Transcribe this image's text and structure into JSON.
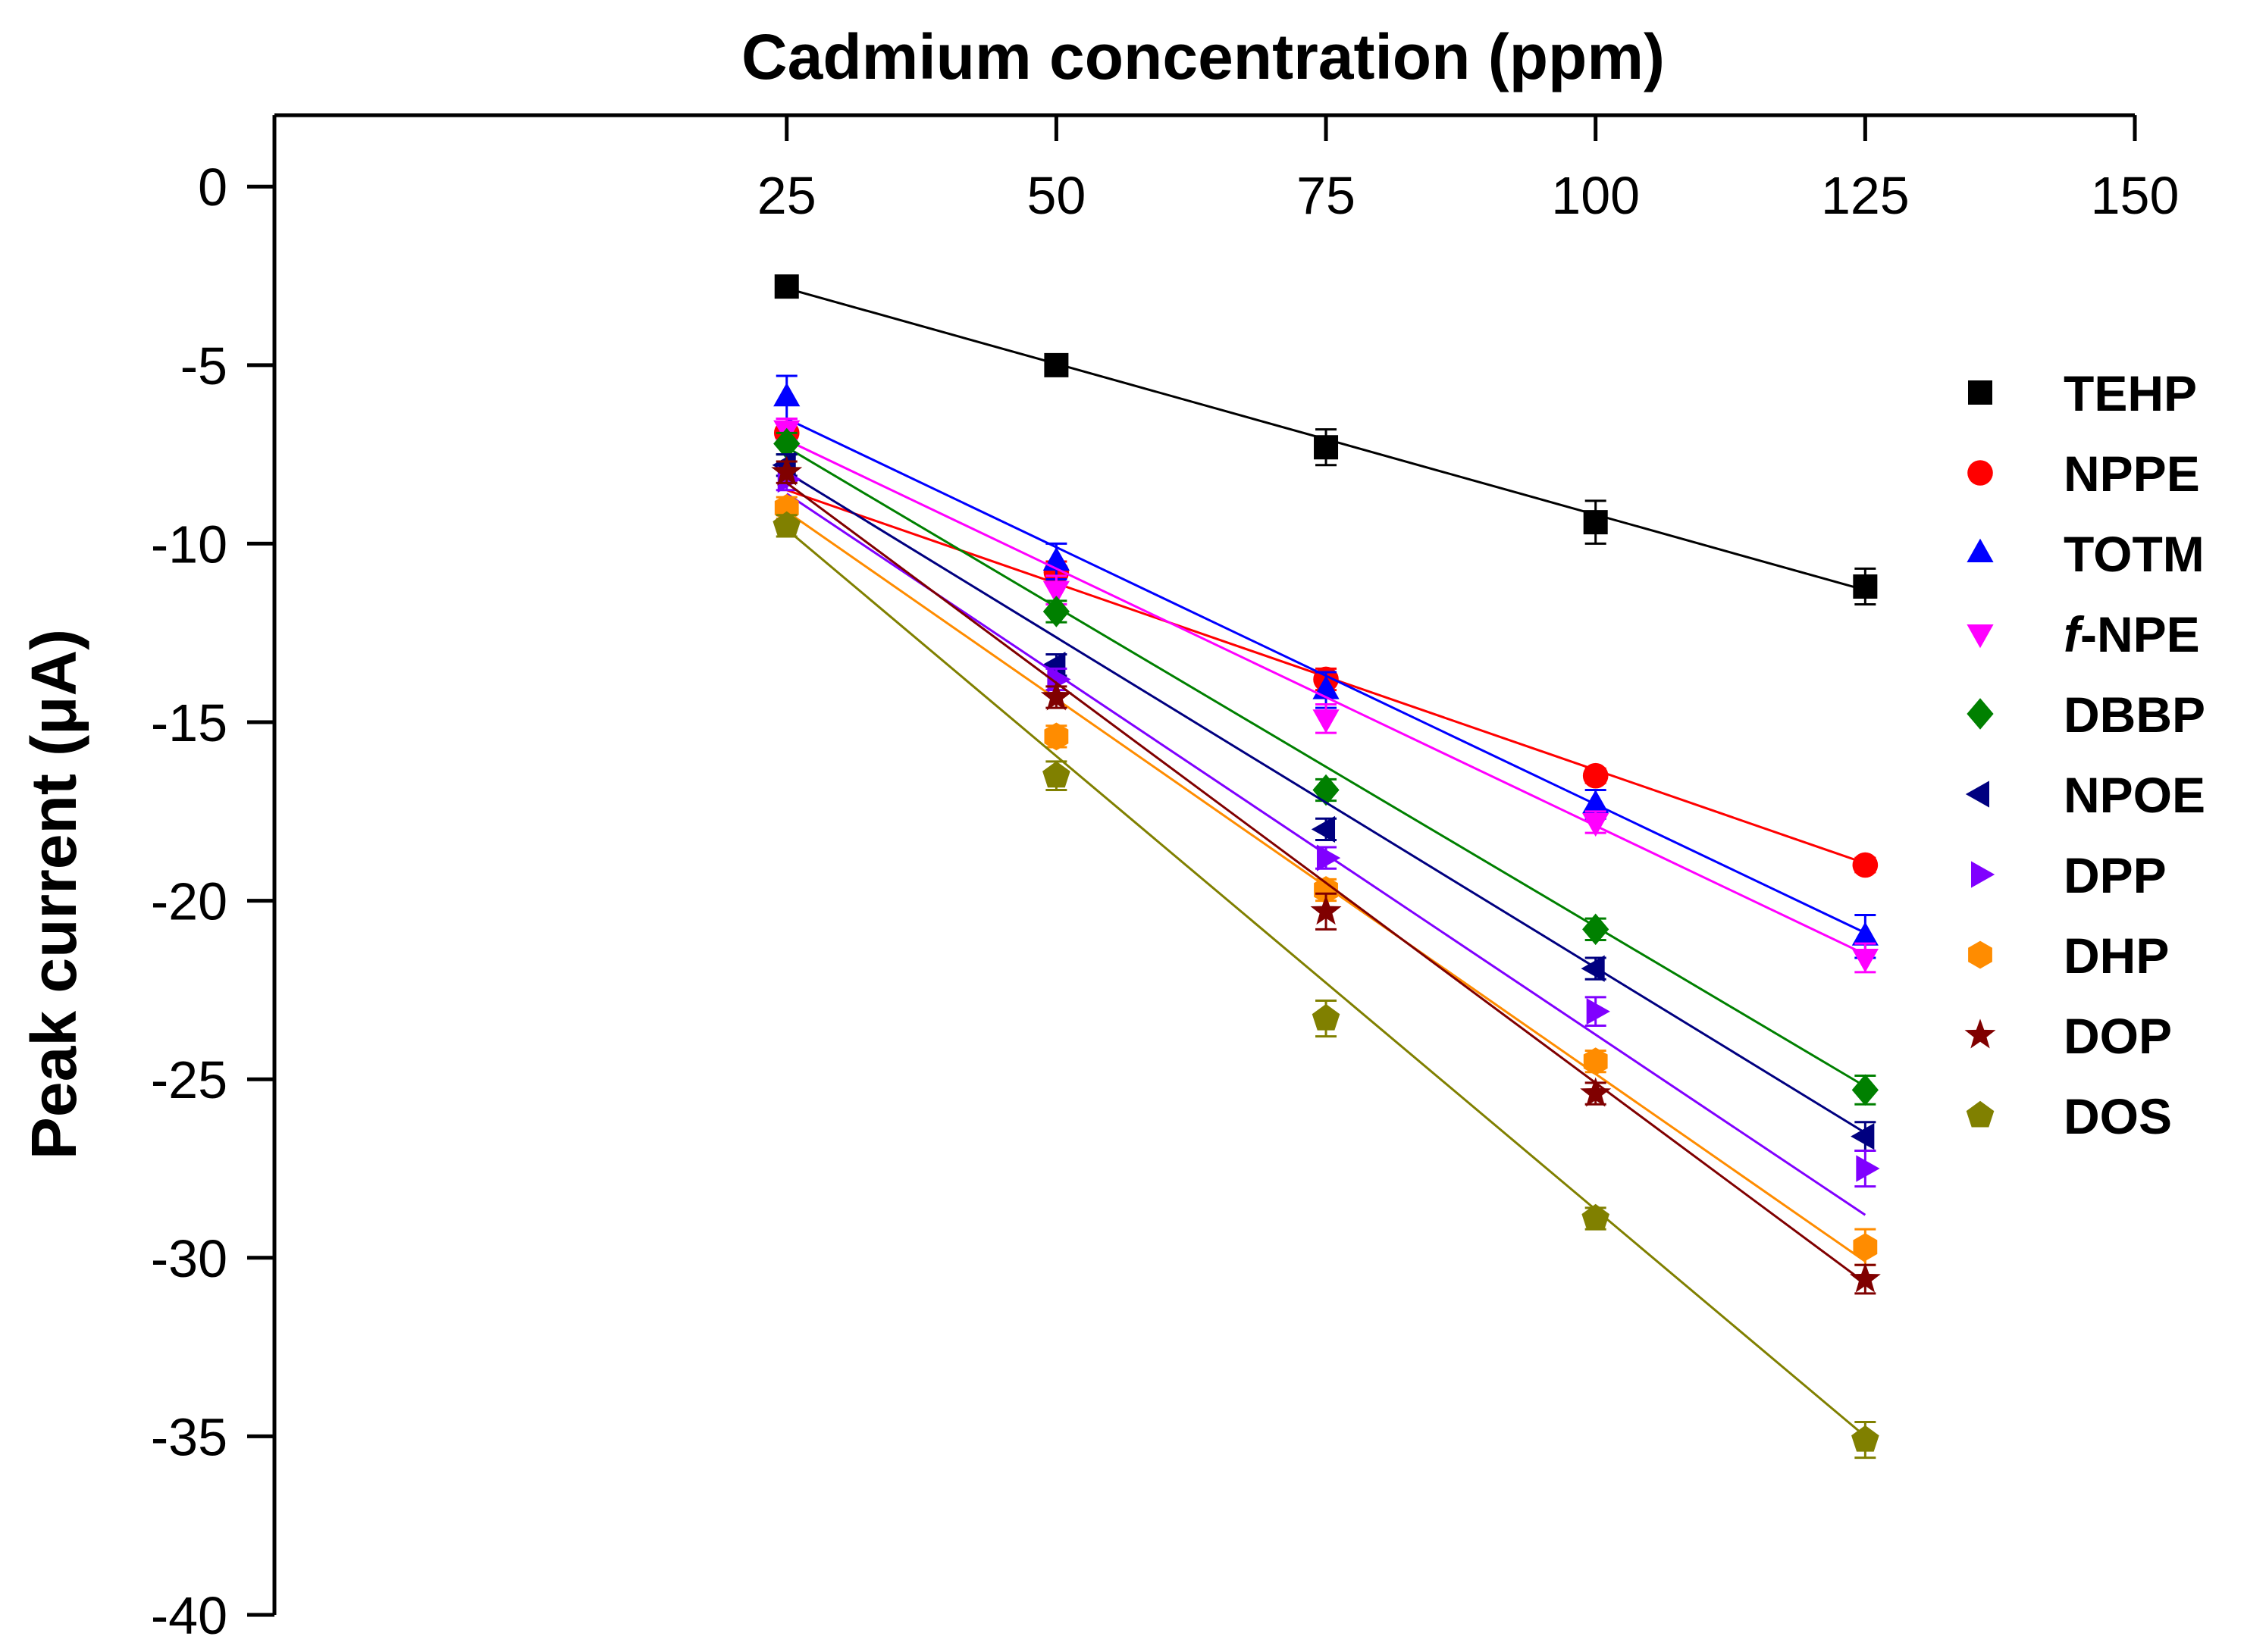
{
  "chart_data": {
    "type": "scatter",
    "title": "",
    "xlabel": "Cadmium concentration (ppm)",
    "ylabel": "Peak current (μA)",
    "x_axis_position": "top",
    "xlim": [
      -22.5,
      150
    ],
    "ylim": [
      -40,
      2
    ],
    "xticks": [
      25,
      50,
      75,
      100,
      125,
      150
    ],
    "yticks": [
      0,
      -5,
      -10,
      -15,
      -20,
      -25,
      -30,
      -35,
      -40
    ],
    "x": [
      25,
      50,
      75,
      100,
      125
    ],
    "legend_position": "right",
    "series": [
      {
        "name": "TEHP",
        "marker": "square",
        "color": "#000000",
        "values": [
          -2.8,
          -5.0,
          -7.3,
          -9.4,
          -11.2
        ],
        "errors": [
          0.3,
          0.2,
          0.5,
          0.6,
          0.5
        ],
        "fit": [
          [
            25,
            -2.85
          ],
          [
            125,
            -11.3
          ]
        ]
      },
      {
        "name": "NPPE",
        "marker": "circle",
        "color": "#ff0000",
        "values": [
          -6.9,
          -10.8,
          -13.8,
          -16.5,
          -19.0
        ],
        "errors": [
          0.3,
          0.3,
          0.3,
          0.2,
          0.2
        ],
        "fit": [
          [
            25,
            -8.5
          ],
          [
            125,
            -18.95
          ]
        ]
      },
      {
        "name": "TOTM",
        "marker": "triangle-up",
        "color": "#0000ff",
        "values": [
          -5.9,
          -10.5,
          -14.1,
          -17.3,
          -21.0
        ],
        "errors": [
          0.6,
          0.5,
          0.5,
          0.4,
          0.6
        ],
        "fit": [
          [
            25,
            -6.5
          ],
          [
            125,
            -20.9
          ]
        ]
      },
      {
        "name": "f-NPE",
        "name_prefix": "f",
        "name_rest": "-NPE",
        "marker": "triangle-down",
        "color": "#ff00ff",
        "values": [
          -6.8,
          -11.3,
          -14.9,
          -17.8,
          -21.6
        ],
        "errors": [
          0.3,
          0.4,
          0.4,
          0.3,
          0.4
        ],
        "fit": [
          [
            25,
            -7.1
          ],
          [
            125,
            -21.5
          ]
        ]
      },
      {
        "name": "DBBP",
        "marker": "diamond",
        "color": "#008000",
        "values": [
          -7.2,
          -11.9,
          -16.9,
          -20.8,
          -25.3
        ],
        "errors": [
          0.3,
          0.3,
          0.3,
          0.3,
          0.4
        ],
        "fit": [
          [
            25,
            -7.3
          ],
          [
            125,
            -25.2
          ]
        ]
      },
      {
        "name": "NPOE",
        "marker": "triangle-left",
        "color": "#000080",
        "values": [
          -7.8,
          -13.4,
          -18.0,
          -21.9,
          -26.6
        ],
        "errors": [
          0.3,
          0.3,
          0.3,
          0.3,
          0.4
        ],
        "fit": [
          [
            25,
            -8.0
          ],
          [
            125,
            -26.5
          ]
        ]
      },
      {
        "name": "DPP",
        "marker": "triangle-right",
        "color": "#8000ff",
        "values": [
          -8.2,
          -13.8,
          -18.8,
          -23.1,
          -27.5
        ],
        "errors": [
          0.3,
          0.3,
          0.3,
          0.4,
          0.5
        ],
        "fit": [
          [
            25,
            -8.6
          ],
          [
            125,
            -28.8
          ]
        ]
      },
      {
        "name": "DHP",
        "marker": "hexagon",
        "color": "#ff8c00",
        "values": [
          -9.0,
          -15.4,
          -19.7,
          -24.5,
          -29.7
        ],
        "errors": [
          0.3,
          0.3,
          0.3,
          0.3,
          0.5
        ],
        "fit": [
          [
            25,
            -9.1
          ],
          [
            125,
            -30.1
          ]
        ]
      },
      {
        "name": "DOP",
        "marker": "star",
        "color": "#800000",
        "values": [
          -8.0,
          -14.3,
          -20.3,
          -25.4,
          -30.6
        ],
        "errors": [
          0.3,
          0.3,
          0.5,
          0.3,
          0.4
        ],
        "fit": [
          [
            25,
            -8.3
          ],
          [
            125,
            -30.7
          ]
        ]
      },
      {
        "name": "DOS",
        "marker": "pentagon",
        "color": "#808000",
        "values": [
          -9.5,
          -16.5,
          -23.3,
          -28.9,
          -35.1
        ],
        "errors": [
          0.3,
          0.4,
          0.5,
          0.3,
          0.5
        ],
        "fit": [
          [
            25,
            -9.6
          ],
          [
            125,
            -35.0
          ]
        ]
      }
    ]
  }
}
